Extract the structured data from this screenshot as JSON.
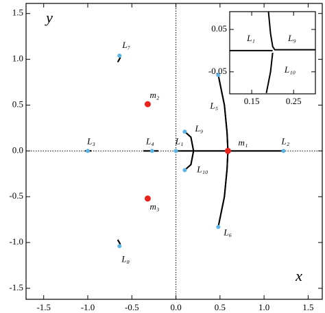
{
  "chart_data": [
    {
      "type": "scatter",
      "x_label": "x",
      "y_label": "y",
      "xlim": [
        -1.7,
        1.66
      ],
      "ylim": [
        -1.62,
        1.61
      ],
      "xticks": [
        -1.5,
        {
          "value": -1,
          "label": "-1.0"
        },
        -0.5,
        {
          "value": 0,
          "label": "0.0"
        },
        0.5,
        {
          "value": 1,
          "label": "1.0"
        },
        1.5
      ],
      "yticks": [
        -1.5,
        {
          "value": -1,
          "label": "-1.0"
        },
        -0.5,
        {
          "value": 0,
          "label": "0.0"
        },
        0.5,
        {
          "value": 1,
          "label": "1.0"
        },
        1.5
      ],
      "curve_color": "#000000",
      "curves": [
        {
          "x": [
            0.48,
            0.55,
            0.58,
            0.59,
            0.58,
            0.55,
            0.48
          ],
          "y": [
            0.83,
            0.5,
            0.2,
            0,
            -0.2,
            -0.5,
            -0.83
          ]
        },
        {
          "x": [
            0.1,
            0.17,
            0.2,
            0.17,
            0.1
          ],
          "y": [
            0.21,
            0.15,
            0,
            -0.15,
            -0.21
          ]
        },
        {
          "x": [
            0,
            1.22
          ],
          "y": [
            0,
            0
          ]
        },
        {
          "x": [
            -0.37,
            -0.2
          ],
          "y": [
            0,
            0
          ]
        },
        {
          "x": [
            -1.03,
            -0.96
          ],
          "y": [
            0,
            0
          ]
        },
        {
          "x": [
            -0.66,
            -0.63
          ],
          "y": [
            0.97,
            1.02
          ]
        },
        {
          "x": [
            -0.66,
            -0.63
          ],
          "y": [
            -0.97,
            -1.02
          ]
        }
      ],
      "series": [
        {
          "color": "#5ab4e5",
          "labels": [
            "L₁",
            "L₂",
            "L₃",
            "L₄",
            "L₅",
            "L₆",
            "L₇",
            "L₈",
            "L₉",
            "L₁₀"
          ],
          "x": [
            0,
            1.22,
            -1.0,
            -0.27,
            0.48,
            0.48,
            -0.64,
            -0.64,
            0.1,
            0.1
          ],
          "y": [
            0,
            0,
            0,
            0,
            0.83,
            -0.83,
            1.04,
            -1.04,
            0.21,
            -0.21
          ]
        },
        {
          "color": "#e8231c",
          "labels": [
            "m₁",
            "m₂",
            "m₃"
          ],
          "x": [
            0.59,
            -0.32,
            -0.32
          ],
          "y": [
            0,
            0.51,
            -0.52
          ]
        }
      ]
    },
    {
      "type": "inset",
      "xlim": [
        0.0975,
        0.302
      ],
      "ylim": [
        -0.102,
        0.092
      ],
      "xticks": [
        0.15,
        0.25
      ],
      "yticks": [
        -0.05,
        0.05
      ],
      "curve_color": "#000000",
      "curves": [
        {
          "x": [
            0.19,
            0.195,
            0.2,
            0.205,
            0.302
          ],
          "y": [
            0.092,
            0.04,
            0.01,
            0.002,
            0.002
          ]
        },
        {
          "x": [
            0.0975,
            0.2
          ],
          "y": [
            0,
            0
          ]
        },
        {
          "x": [
            0.2,
            0.195,
            0.185
          ],
          "y": [
            -0.005,
            -0.05,
            -0.1
          ]
        }
      ],
      "labels": [
        "L₁",
        "L₉",
        "L₁₀"
      ]
    }
  ]
}
